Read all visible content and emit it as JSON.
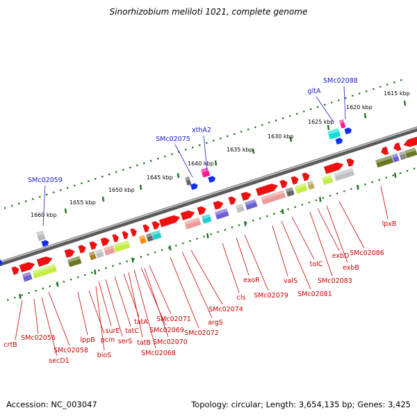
{
  "title": "Sinorhizobium meliloti 1021, complete genome",
  "footer": {
    "accession": "Accession: NC_003047",
    "summary": "Topology: circular; Length: 3,654,135 bp; Genes: 3,425"
  },
  "colors": {
    "forward_gene": "#ff0000",
    "label_red": "#cc0000",
    "label_blue": "#1a1acc",
    "ruler_green": "#227722",
    "backbone": "#888888"
  },
  "ruler_ticks": [
    "1615 kbp",
    "1620 kbp",
    "1625 kbp",
    "1630 kbp",
    "1635 kbp",
    "1640 kbp",
    "1645 kbp",
    "1650 kbp",
    "1655 kbp",
    "1660 kbp"
  ],
  "upper_labels": [
    "SMc02088",
    "gltA",
    "xthA2",
    "SMc02075",
    "SMc02059"
  ],
  "lower_labels": [
    "crtB",
    "SMc02056",
    "secD1",
    "SMc02058",
    "lppB",
    "pcm",
    "bioS",
    "surE",
    "serS",
    "tatC",
    "tatA",
    "tatB",
    "SMc02069",
    "SMc02068",
    "SMc02071",
    "SMc02070",
    "SMc02072",
    "argS",
    "SMc02074",
    "cls",
    "exoR",
    "SMc02079",
    "valS",
    "SMc02081",
    "tolC",
    "SMc02083",
    "exbD",
    "exbB",
    "SMc02086",
    "lpxB"
  ]
}
